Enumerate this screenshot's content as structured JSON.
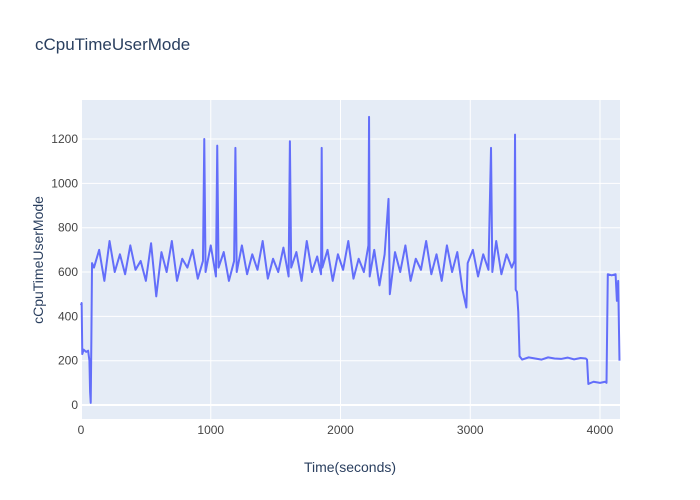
{
  "chart_data": {
    "type": "line",
    "title": "cCpuTimeUserMode",
    "x_label": "Time(seconds)",
    "y_label": "cCpuTimeUserMode",
    "xlim": [
      0,
      4154
    ],
    "ylim": [
      -63,
      1376
    ],
    "xticks": [
      0,
      1000,
      2000,
      3000,
      4000
    ],
    "yticks": [
      0,
      200,
      400,
      600,
      800,
      1000,
      1200
    ],
    "grid": true,
    "series": [
      {
        "color": "#636efa",
        "x": [
          0,
          5,
          10,
          20,
          40,
          55,
          65,
          70,
          75,
          80,
          85,
          100,
          140,
          180,
          220,
          260,
          300,
          340,
          380,
          420,
          460,
          500,
          540,
          580,
          620,
          660,
          700,
          740,
          780,
          820,
          860,
          900,
          940,
          950,
          960,
          1000,
          1040,
          1050,
          1060,
          1100,
          1140,
          1180,
          1190,
          1200,
          1240,
          1280,
          1320,
          1360,
          1400,
          1440,
          1480,
          1520,
          1560,
          1600,
          1610,
          1620,
          1660,
          1700,
          1740,
          1780,
          1820,
          1850,
          1855,
          1860,
          1900,
          1940,
          1980,
          2020,
          2060,
          2100,
          2140,
          2180,
          2215,
          2220,
          2225,
          2260,
          2300,
          2340,
          2370,
          2380,
          2420,
          2460,
          2500,
          2540,
          2580,
          2620,
          2660,
          2700,
          2740,
          2780,
          2820,
          2860,
          2900,
          2940,
          2970,
          2980,
          3020,
          3060,
          3100,
          3140,
          3160,
          3170,
          3200,
          3240,
          3280,
          3320,
          3340,
          3345,
          3350,
          3360,
          3370,
          3380,
          3400,
          3450,
          3500,
          3550,
          3600,
          3650,
          3700,
          3750,
          3800,
          3850,
          3890,
          3900,
          3910,
          3950,
          4000,
          4040,
          4050,
          4060,
          4090,
          4120,
          4130,
          4140,
          4150
        ],
        "values": [
          450,
          460,
          230,
          250,
          240,
          245,
          200,
          60,
          10,
          300,
          640,
          620,
          700,
          560,
          740,
          600,
          680,
          590,
          720,
          610,
          650,
          560,
          730,
          490,
          690,
          600,
          740,
          560,
          660,
          620,
          700,
          570,
          650,
          1200,
          600,
          720,
          580,
          1170,
          620,
          690,
          560,
          650,
          1160,
          600,
          720,
          590,
          680,
          610,
          740,
          570,
          660,
          600,
          710,
          580,
          1190,
          620,
          690,
          560,
          740,
          600,
          670,
          590,
          1160,
          620,
          700,
          560,
          680,
          610,
          740,
          570,
          660,
          600,
          720,
          1300,
          580,
          700,
          540,
          680,
          930,
          500,
          690,
          600,
          720,
          560,
          660,
          610,
          740,
          590,
          680,
          560,
          720,
          600,
          690,
          520,
          440,
          640,
          700,
          580,
          680,
          610,
          1160,
          600,
          740,
          590,
          680,
          620,
          650,
          1220,
          520,
          510,
          420,
          220,
          205,
          215,
          210,
          205,
          215,
          210,
          208,
          214,
          206,
          212,
          210,
          205,
          95,
          105,
          100,
          105,
          100,
          590,
          585,
          590,
          470,
          560,
          200
        ]
      }
    ]
  }
}
